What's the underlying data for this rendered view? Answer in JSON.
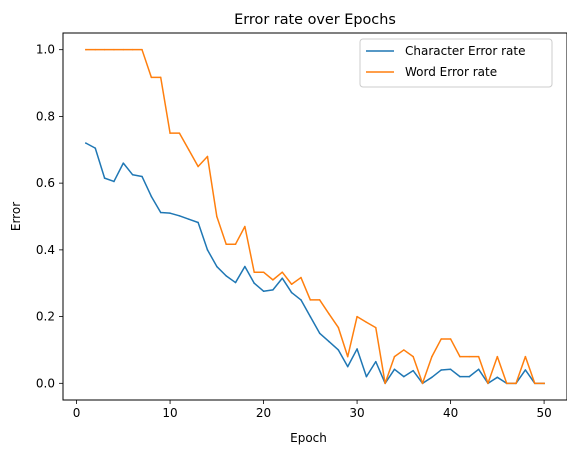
{
  "chart_data": {
    "type": "line",
    "title": "Error rate over Epochs",
    "xlabel": "Epoch",
    "ylabel": "Error",
    "xlim": [
      -1.45,
      52.45
    ],
    "ylim": [
      -0.05,
      1.05
    ],
    "xticks": [
      0,
      10,
      20,
      30,
      40,
      50
    ],
    "xtick_labels": [
      "0",
      "10",
      "20",
      "30",
      "40",
      "50"
    ],
    "yticks": [
      0.0,
      0.2,
      0.4,
      0.6,
      0.8,
      1.0
    ],
    "ytick_labels": [
      "0.0",
      "0.2",
      "0.4",
      "0.6",
      "0.8",
      "1.0"
    ],
    "grid": false,
    "legend_position": "top-right",
    "x": [
      1,
      2,
      3,
      4,
      5,
      6,
      7,
      8,
      9,
      10,
      11,
      12,
      13,
      14,
      15,
      16,
      17,
      18,
      19,
      20,
      21,
      22,
      23,
      24,
      25,
      26,
      27,
      28,
      29,
      30,
      31,
      32,
      33,
      34,
      35,
      36,
      37,
      38,
      39,
      40,
      41,
      42,
      43,
      44,
      45,
      46,
      47,
      48,
      49,
      50
    ],
    "series": [
      {
        "name": "Character Error rate",
        "color": "#1f77b4",
        "values": [
          0.72,
          0.705,
          0.615,
          0.605,
          0.66,
          0.625,
          0.62,
          0.56,
          0.512,
          0.51,
          0.502,
          0.492,
          0.482,
          0.4,
          0.35,
          0.322,
          0.302,
          0.35,
          0.3,
          0.276,
          0.28,
          0.315,
          0.272,
          0.25,
          0.2,
          0.15,
          0.125,
          0.1,
          0.05,
          0.103,
          0.02,
          0.065,
          0.0,
          0.042,
          0.02,
          0.038,
          0.0,
          0.018,
          0.04,
          0.042,
          0.02,
          0.02,
          0.042,
          0.0,
          0.018,
          0.0,
          0.0,
          0.04,
          0.0,
          0.0
        ]
      },
      {
        "name": "Word Error rate",
        "color": "#ff7f0e",
        "values": [
          1.0,
          1.0,
          1.0,
          1.0,
          1.0,
          1.0,
          1.0,
          0.917,
          0.917,
          0.75,
          0.75,
          0.7,
          0.65,
          0.68,
          0.5,
          0.417,
          0.417,
          0.47,
          0.333,
          0.333,
          0.31,
          0.333,
          0.297,
          0.317,
          0.25,
          0.25,
          0.208,
          0.167,
          0.08,
          0.2,
          0.183,
          0.167,
          0.0,
          0.08,
          0.1,
          0.08,
          0.0,
          0.08,
          0.133,
          0.133,
          0.08,
          0.08,
          0.08,
          0.0,
          0.08,
          0.0,
          0.0,
          0.08,
          0.0,
          0.0
        ]
      }
    ]
  }
}
